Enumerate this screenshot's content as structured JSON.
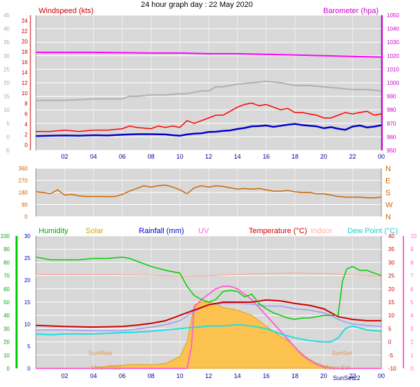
{
  "title": "24 hour graph day : 22 May 2020",
  "x_tick_labels": [
    "02",
    "04",
    "06",
    "08",
    "10",
    "12",
    "14",
    "16",
    "18",
    "20",
    "22",
    "00"
  ],
  "colors": {
    "panel_bg": "#d8d8d8",
    "gust": "#ff0000",
    "wind_avg": "#0000cc",
    "windrun": "#b0b0b0",
    "baro": "#ff00ff",
    "direction": "#cc6600",
    "humidity": "#00cc00",
    "solar": "#ffc040",
    "rain": "#0000ff",
    "uv": "#ff66cc",
    "temperature": "#cc0000",
    "indoor": "#ffb0a0",
    "dew_point": "#22dddd",
    "apparent": "#9999ff"
  },
  "chart_data": [
    {
      "type": "line",
      "labels": {
        "left": "Windspeed (kts)",
        "right": "Barometer (hpa)"
      },
      "y_left_ticks": [
        "-5",
        "0",
        "5",
        "10",
        "15",
        "20",
        "25",
        "30",
        "35",
        "40",
        "45"
      ],
      "y_right_ticks": [
        "950",
        "960",
        "970",
        "980",
        "990",
        "1000",
        "1010",
        "1020",
        "1030",
        "1040",
        "1050"
      ],
      "y_mid_ticks": [
        "0",
        "2",
        "4",
        "6",
        "8",
        "10",
        "12",
        "14",
        "16",
        "18",
        "20",
        "22",
        "24"
      ],
      "ylim_left": [
        -5,
        45
      ],
      "ylim_right": [
        950,
        1050
      ],
      "xlim_hours": [
        0,
        24
      ],
      "series": [
        {
          "name": "Barometer",
          "axis": "right",
          "x": [
            0,
            4,
            8,
            10,
            12,
            14,
            16,
            18,
            20,
            22,
            24
          ],
          "y": [
            1022.5,
            1022.5,
            1022,
            1022,
            1021.5,
            1021.5,
            1021,
            1020.5,
            1020,
            1019.5,
            1019
          ]
        },
        {
          "name": "Windrun",
          "axis": "left",
          "x": [
            0,
            2,
            4,
            6,
            6.5,
            7,
            8,
            9,
            10,
            10.5,
            11,
            11.5,
            12,
            12.5,
            13,
            14,
            15,
            16,
            17,
            18,
            19,
            20,
            21,
            22,
            23,
            24
          ],
          "y": [
            13.5,
            13.5,
            14,
            14,
            15,
            15,
            15.5,
            15.5,
            16,
            16,
            16.5,
            17,
            17,
            18.5,
            18.5,
            19.5,
            20,
            20.5,
            20,
            19,
            19,
            18.5,
            18,
            17.5,
            17.5,
            17
          ]
        },
        {
          "name": "Gust",
          "axis": "left",
          "x": [
            0,
            1,
            2,
            3,
            4,
            5,
            6,
            6.5,
            7,
            8,
            8.5,
            9,
            9.5,
            10,
            10.5,
            11,
            11.5,
            12,
            12.5,
            13,
            13.5,
            14,
            14.5,
            15,
            15.5,
            16,
            16.5,
            17,
            17.5,
            18,
            18.5,
            19,
            19.5,
            20,
            20.5,
            21,
            21.5,
            22,
            22.5,
            23,
            23.5,
            24
          ],
          "y": [
            2,
            2,
            2.5,
            2,
            2.5,
            2.5,
            3,
            4,
            3.5,
            3,
            4,
            3.5,
            4,
            3.5,
            6,
            5,
            6,
            7,
            8,
            8,
            9.5,
            11,
            12,
            12.5,
            11.5,
            12,
            11,
            10,
            10.5,
            9,
            9,
            8.5,
            8,
            7,
            7,
            8,
            9,
            8.5,
            9,
            9.5,
            8,
            8.5
          ]
        },
        {
          "name": "Wind average",
          "axis": "left",
          "x": [
            0,
            1,
            2,
            3,
            4,
            5,
            6,
            7,
            8,
            9,
            9.5,
            10,
            10.5,
            11,
            11.5,
            12,
            12.5,
            13,
            13.5,
            14,
            14.5,
            15,
            15.5,
            16,
            16.5,
            17,
            17.5,
            18,
            18.5,
            19,
            19.5,
            20,
            20.5,
            21,
            21.5,
            22,
            22.5,
            23,
            23.5,
            24
          ],
          "y": [
            0.3,
            0.4,
            0.5,
            0.4,
            0.6,
            0.5,
            0.8,
            1,
            1,
            0.9,
            0.6,
            0.4,
            0.9,
            1.2,
            1.3,
            1.8,
            1.9,
            2.2,
            2.4,
            2.9,
            3.3,
            3.9,
            4,
            4.2,
            3.7,
            4.1,
            4.5,
            4.8,
            4.4,
            4.1,
            3.9,
            3.2,
            3.6,
            3,
            2.6,
            3.8,
            4.2,
            3.5,
            3.8,
            4.3
          ]
        }
      ]
    },
    {
      "type": "line",
      "labels": {
        "left": "",
        "right": ""
      },
      "y_left_ticks": [
        "0",
        "90",
        "180",
        "270",
        "360"
      ],
      "y_right_ticks": [
        "N",
        "E",
        "S",
        "W",
        "N"
      ],
      "ylim": [
        0,
        360
      ],
      "xlim_hours": [
        0,
        24
      ],
      "series": [
        {
          "name": "Wind direction",
          "x": [
            0,
            0.5,
            1,
            1.5,
            2,
            2.5,
            3,
            3.5,
            4,
            4.5,
            5,
            5.5,
            6,
            6.5,
            7,
            7.5,
            8,
            8.5,
            9,
            9.5,
            10,
            10.5,
            11,
            11.5,
            12,
            12.5,
            13,
            13.5,
            14,
            14.5,
            15,
            15.5,
            16,
            16.5,
            17,
            17.5,
            18,
            18.5,
            19,
            19.5,
            20,
            20.5,
            21,
            21.5,
            22,
            22.5,
            23,
            23.5,
            24
          ],
          "y": [
            185,
            180,
            170,
            200,
            160,
            165,
            155,
            150,
            150,
            150,
            148,
            150,
            165,
            190,
            210,
            230,
            220,
            230,
            235,
            220,
            200,
            170,
            215,
            230,
            220,
            230,
            225,
            215,
            205,
            210,
            205,
            210,
            200,
            190,
            190,
            195,
            185,
            180,
            180,
            170,
            170,
            160,
            150,
            145,
            145,
            145,
            140,
            140,
            145
          ]
        }
      ]
    },
    {
      "type": "area",
      "labels": {
        "humidity": "Humidity",
        "solar": "Solar",
        "rain": "Rainfall (mm)",
        "uv": "UV",
        "temperature": "Temperature (°C)",
        "indoor": "Indoor",
        "dew_point": "Dew Point (°C)"
      },
      "annotations": [
        "SunRise",
        "SunSet",
        "SunSet22",
        "Moon Rise",
        "Moon Set"
      ],
      "y_humidity_ticks": [
        "0",
        "10",
        "20",
        "30",
        "40",
        "50",
        "60",
        "70",
        "80",
        "90",
        "100"
      ],
      "y_rain_ticks": [
        "0",
        "5",
        "10",
        "15",
        "20",
        "25",
        "30"
      ],
      "y_temp_ticks": [
        "-10",
        "-5",
        "0",
        "5",
        "10",
        "15",
        "20",
        "25",
        "30",
        "35",
        "40"
      ],
      "y_uv_ticks": [
        "0",
        "1",
        "2",
        "3",
        "4",
        "5",
        "6",
        "7",
        "8",
        "9",
        "10"
      ],
      "ylim_temp": [
        -10,
        40
      ],
      "ylim_humidity": [
        0,
        100
      ],
      "ylim_rain": [
        0,
        30
      ],
      "xlim_hours": [
        0,
        24
      ],
      "series": [
        {
          "name": "Humidity",
          "axis": "humidity",
          "x": [
            0,
            1,
            2,
            3,
            4,
            5,
            6,
            6.5,
            7,
            8,
            9,
            10,
            10.5,
            11,
            11.5,
            12,
            12.5,
            13,
            13.5,
            14,
            14.5,
            15,
            15.5,
            16,
            16.5,
            17,
            17.5,
            18,
            18.5,
            19,
            19.5,
            20,
            20.5,
            21,
            21.3,
            21.6,
            22,
            22.5,
            23,
            23.5,
            24
          ],
          "y": [
            84,
            82,
            82,
            82,
            83,
            83,
            84,
            83,
            81,
            77,
            74,
            72,
            62,
            55,
            52,
            50,
            52,
            58,
            59,
            58,
            54,
            56,
            49,
            45,
            42,
            40,
            38,
            37,
            38,
            38,
            39,
            40,
            40,
            40,
            66,
            75,
            77,
            74,
            74,
            72,
            70
          ]
        },
        {
          "name": "Solar",
          "axis": "temp",
          "x": [
            0,
            3,
            4,
            5,
            6,
            7,
            8,
            9,
            10,
            10.5,
            11,
            11.5,
            12,
            12.5,
            13,
            13.5,
            14,
            14.5,
            15,
            15.5,
            16,
            16.5,
            17,
            17.5,
            18,
            18.5,
            19,
            19.5,
            20,
            20.5,
            21,
            24
          ],
          "y": [
            -10,
            -10,
            -9.8,
            -9.2,
            -8.8,
            -8.5,
            -8.6,
            -8.2,
            -5.5,
            0,
            14,
            15,
            15,
            14.5,
            13,
            12.5,
            12,
            11,
            10,
            8,
            6,
            4,
            2,
            0.5,
            -2,
            -4.5,
            -6.5,
            -8,
            -9,
            -9.6,
            -10,
            -10
          ]
        },
        {
          "name": "UV",
          "axis": "temp",
          "x": [
            0,
            10.5,
            10.8,
            11,
            11.5,
            12,
            12.5,
            13,
            13.5,
            14,
            14.5,
            15,
            15.5,
            16,
            16.5,
            17,
            17.5,
            18,
            18.5,
            19,
            19.5,
            20,
            20.5,
            24
          ],
          "y": [
            -10,
            -10,
            -2,
            13,
            16,
            18,
            20,
            21,
            21,
            20,
            18,
            16,
            13,
            10,
            7,
            4,
            1,
            -2,
            -5,
            -7,
            -8.5,
            -9.5,
            -10,
            -10
          ]
        },
        {
          "name": "Apparent",
          "axis": "temp",
          "x": [
            0,
            2,
            4,
            6,
            8,
            9,
            10,
            11,
            12,
            13,
            14,
            15,
            16,
            17,
            18,
            19,
            20,
            20.5,
            21,
            21.5,
            22,
            23,
            24
          ],
          "y": [
            4.5,
            4.5,
            4.2,
            4.2,
            5.5,
            6.5,
            8,
            11.5,
            14,
            14.5,
            14.5,
            14.3,
            13.5,
            13.5,
            12.5,
            12,
            11,
            10,
            8.5,
            7.5,
            6.8,
            6.2,
            5.8
          ]
        },
        {
          "name": "Indoor",
          "axis": "temp",
          "x": [
            0,
            2,
            4,
            6,
            8,
            10,
            12,
            14,
            16,
            18,
            20,
            22,
            24
          ],
          "y": [
            25.5,
            25.5,
            25.5,
            25.3,
            25.2,
            24.8,
            25,
            25.5,
            25.8,
            26,
            25.8,
            25.3,
            24.8
          ]
        },
        {
          "name": "Temperature",
          "axis": "temp",
          "x": [
            0,
            2,
            4,
            6,
            7,
            8,
            9,
            10,
            11,
            12,
            13,
            14,
            15,
            16,
            17,
            18,
            19,
            20,
            20.5,
            21,
            22,
            23,
            24
          ],
          "y": [
            6.2,
            5.8,
            5.6,
            5.8,
            6.3,
            7,
            8,
            10,
            12,
            14,
            15,
            15,
            15,
            15.8,
            15.5,
            14.5,
            13.8,
            12.5,
            11,
            9.5,
            8.5,
            8,
            8
          ]
        },
        {
          "name": "Dew Point",
          "axis": "temp",
          "x": [
            0,
            1,
            2,
            3,
            4,
            5,
            6,
            7,
            8,
            9,
            10,
            11,
            12,
            13,
            14,
            15,
            16,
            17,
            18,
            19,
            20,
            20.5,
            21,
            21.5,
            22,
            23,
            24
          ],
          "y": [
            3,
            2.7,
            3,
            3,
            3,
            3.2,
            3.5,
            3.7,
            4,
            4.5,
            5,
            5.5,
            6,
            6,
            6.5,
            6,
            5,
            3,
            1.5,
            0.5,
            0,
            0,
            1.5,
            5,
            6,
            4.5,
            4
          ]
        }
      ]
    }
  ]
}
